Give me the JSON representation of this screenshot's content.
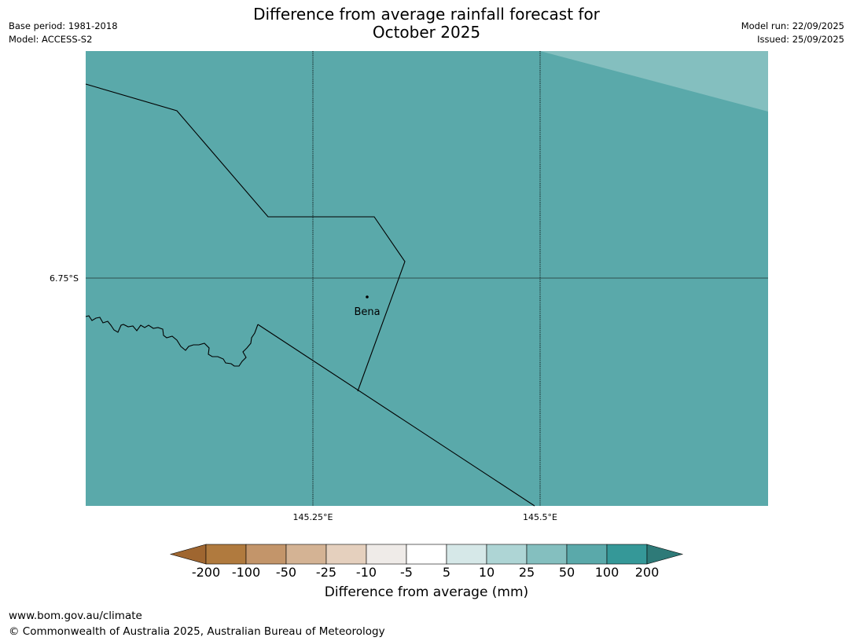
{
  "title_line1": "Difference from average rainfall forecast for",
  "title_line2": "October 2025",
  "base_period": "Base period: 1981-2018",
  "model": "Model: ACCESS-S2",
  "model_run": "Model run: 22/09/2025",
  "issued": "Issued: 25/09/2025",
  "map": {
    "fill_color": "#5aa9aa",
    "corner_fill_color": "#84bfbf",
    "lat_label": "6.75°S",
    "lon_labels": [
      "145.25°E",
      "145.5°E"
    ],
    "place_label": "Bena"
  },
  "colorbar": {
    "label": "Difference from average (mm)",
    "ticks": [
      "-200",
      "-100",
      "-50",
      "-25",
      "-10",
      "-5",
      "5",
      "10",
      "25",
      "50",
      "100",
      "200"
    ],
    "colors": [
      "#9f6630",
      "#b07a3e",
      "#c3956a",
      "#d4b394",
      "#e5d0be",
      "#efebe8",
      "#ffffff",
      "#d6e8e8",
      "#aed5d5",
      "#84bfbf",
      "#5aa9aa",
      "#359898",
      "#2e7a78"
    ]
  },
  "footer_url": "www.bom.gov.au/climate",
  "footer_copyright": "© Commonwealth of Australia 2025, Australian Bureau of Meteorology"
}
